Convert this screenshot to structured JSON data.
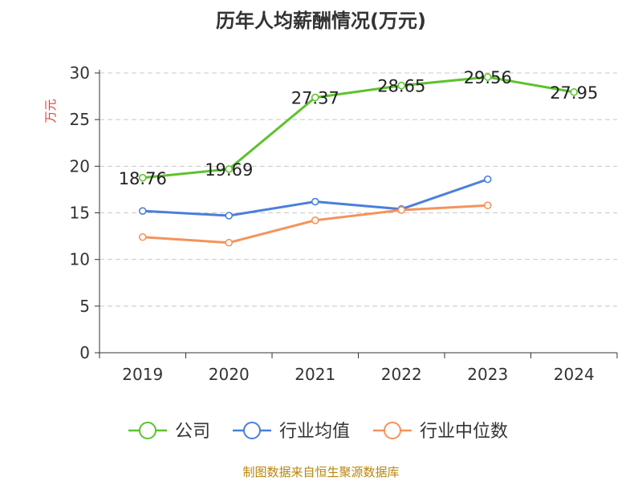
{
  "chart_data": {
    "type": "line",
    "title": "历年人均薪酬情况(万元)",
    "ylabel": "万元",
    "xlabel": "",
    "categories": [
      "2019",
      "2020",
      "2021",
      "2022",
      "2023",
      "2024"
    ],
    "ylim": [
      0,
      30
    ],
    "yticks": [
      0,
      5,
      10,
      15,
      20,
      25,
      30
    ],
    "grid": true,
    "legend_position": "bottom",
    "series": [
      {
        "name": "公司",
        "color": "#5cc32e",
        "values": [
          18.76,
          19.69,
          27.37,
          28.65,
          29.56,
          27.95
        ],
        "labels": [
          "18.76",
          "19.69",
          "27.37",
          "28.65",
          "29.56",
          "27.95"
        ]
      },
      {
        "name": "行业均值",
        "color": "#4a7fdb",
        "values": [
          15.2,
          14.7,
          16.2,
          15.4,
          18.6,
          null
        ]
      },
      {
        "name": "行业中位数",
        "color": "#f4935a",
        "values": [
          12.4,
          11.8,
          14.2,
          15.3,
          15.8,
          null
        ]
      }
    ]
  },
  "footer": {
    "source": "制图数据来自恒生聚源数据库"
  }
}
